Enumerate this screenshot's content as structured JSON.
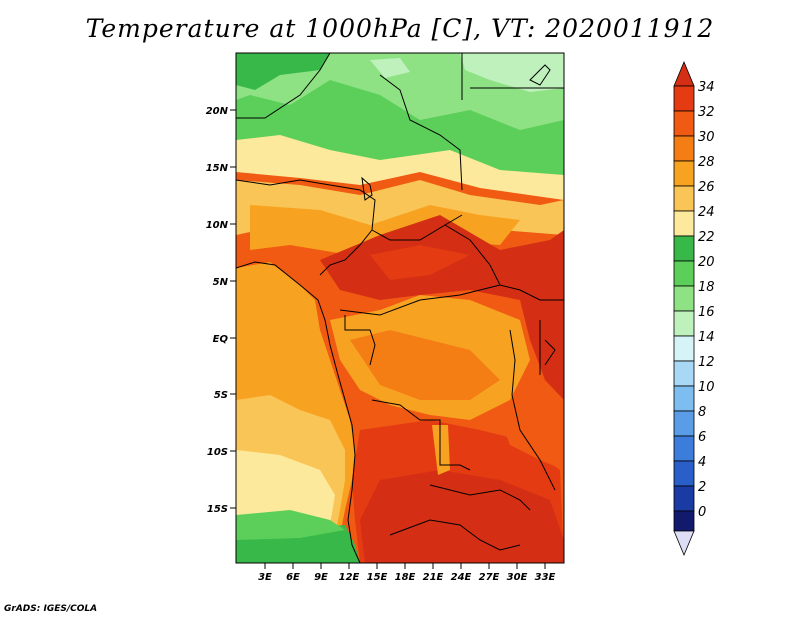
{
  "title": "Temperature at 1000hPa [C], VT: 2020011912",
  "credit": "GrADS: IGES/COLA",
  "map": {
    "lat_labels": [
      "20N",
      "15N",
      "10N",
      "5N",
      "EQ",
      "5S",
      "10S",
      "15S"
    ],
    "lon_labels": [
      "3E",
      "6E",
      "9E",
      "12E",
      "15E",
      "18E",
      "21E",
      "24E",
      "27E",
      "30E",
      "33E"
    ]
  },
  "colorbar": {
    "labels": [
      "34",
      "32",
      "30",
      "28",
      "26",
      "24",
      "22",
      "20",
      "18",
      "16",
      "14",
      "12",
      "10",
      "8",
      "6",
      "4",
      "2",
      "0"
    ],
    "colors": {
      "above_34": "#d42e14",
      "32_34": "#e43b13",
      "30_32": "#f05a12",
      "28_30": "#f57e14",
      "26_28": "#f7a321",
      "24_26": "#f8c556",
      "22_24": "#fde99b",
      "20_22": "#38b848",
      "18_20": "#5ccf5a",
      "16_18": "#8ee283",
      "14_16": "#bff1bd",
      "12_14": "#d6f3f8",
      "10_12": "#a8d8f5",
      "8_10": "#7ebdef",
      "6_8": "#5a9de6",
      "4_6": "#3c7ddc",
      "2_4": "#2a5fc9",
      "0_2": "#1a3aa4",
      "below_0": "#121a6e",
      "below_floor": "#ddddf5"
    }
  }
}
